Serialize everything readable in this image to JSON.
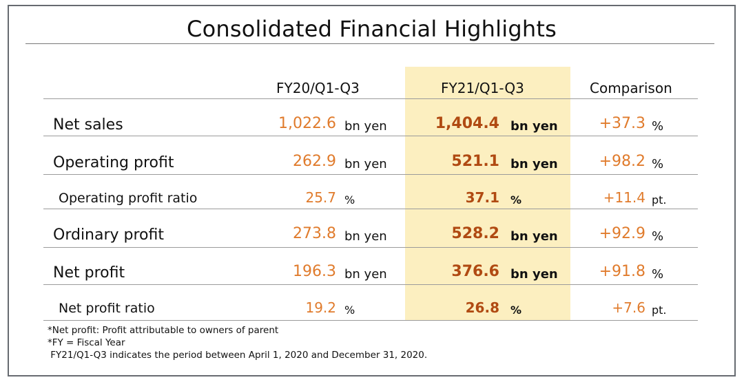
{
  "title": "Consolidated Financial Highlights",
  "columns": {
    "prev": "FY20/Q1-Q3",
    "curr": "FY21/Q1-Q3",
    "cmp": "Comparison"
  },
  "rows": [
    {
      "label": "Net sales",
      "prev_value": "1,022.6",
      "prev_unit": "bn yen",
      "curr_value": "1,404.4",
      "curr_unit": "bn yen",
      "cmp_value": "+37.3",
      "cmp_unit": "%"
    },
    {
      "label": "Operating profit",
      "prev_value": "262.9",
      "prev_unit": "bn yen",
      "curr_value": "521.1",
      "curr_unit": "bn yen",
      "cmp_value": "+98.2",
      "cmp_unit": "%"
    },
    {
      "label": "Operating profit ratio",
      "prev_value": "25.7",
      "prev_unit": "%",
      "curr_value": "37.1",
      "curr_unit": "%",
      "cmp_value": "+11.4",
      "cmp_unit": "pt."
    },
    {
      "label": "Ordinary profit",
      "prev_value": "273.8",
      "prev_unit": "bn yen",
      "curr_value": "528.2",
      "curr_unit": "bn yen",
      "cmp_value": "+92.9",
      "cmp_unit": "%"
    },
    {
      "label": "Net profit",
      "prev_value": "196.3",
      "prev_unit": "bn yen",
      "curr_value": "376.6",
      "curr_unit": "bn yen",
      "cmp_value": "+91.8",
      "cmp_unit": "%"
    },
    {
      "label": "Net profit ratio",
      "prev_value": "19.2",
      "prev_unit": "%",
      "curr_value": "26.8",
      "curr_unit": "%",
      "cmp_value": "+7.6",
      "cmp_unit": "pt."
    }
  ],
  "notes": [
    "*Net profit: Profit attributable to owners of parent",
    "*FY = Fiscal Year",
    " FY21/Q1-Q3 indicates the period between April 1, 2020 and December 31, 2020."
  ],
  "colors": {
    "value": "#e07b2c",
    "value_bold": "#b04a12",
    "highlight": "#fcefc0"
  }
}
